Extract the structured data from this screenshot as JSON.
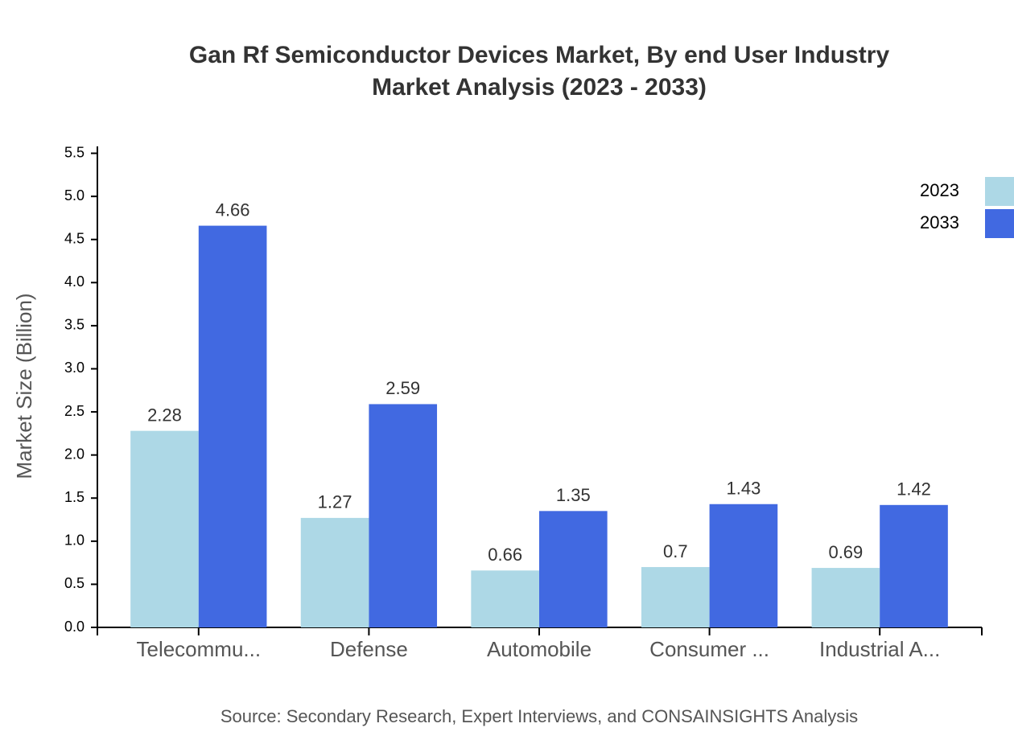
{
  "chart_data": {
    "type": "bar",
    "title": [
      "Gan Rf Semiconductor Devices Market, By end User Industry",
      "Market Analysis (2023 - 2033)"
    ],
    "y_label": "Market Size (Billion)",
    "source": "Source: Secondary Research, Expert Interviews, and CONSAINSIGHTS Analysis",
    "categories": [
      "Telecommu...",
      "Defense",
      "Automobile",
      "Consumer ...",
      "Industrial A..."
    ],
    "series": [
      {
        "name": "2023",
        "color": "#add8e6",
        "values": [
          2.28,
          1.27,
          0.66,
          0.7,
          0.69
        ]
      },
      {
        "name": "2033",
        "color": "#4169e1",
        "values": [
          4.66,
          2.59,
          1.35,
          1.43,
          1.42
        ]
      }
    ],
    "ylim": [
      0,
      5.58
    ],
    "yticks": [
      {
        "value": 0,
        "label": "0.0"
      },
      0.5,
      {
        "value": 1,
        "label": "1.0"
      },
      1.5,
      {
        "value": 2,
        "label": "2.0"
      },
      2.5,
      {
        "value": 3,
        "label": "3.0"
      },
      3.5,
      {
        "value": 4,
        "label": "4.0"
      },
      4.5,
      {
        "value": 5,
        "label": "5.0"
      },
      5.5
    ],
    "legend": "top-right"
  }
}
